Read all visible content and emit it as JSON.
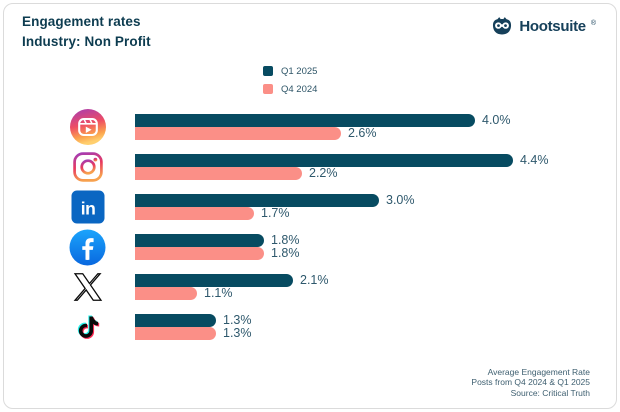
{
  "header": {
    "title": "Engagement rates",
    "subtitle": "Industry: Non Profit",
    "brand": "Hootsuite",
    "brand_mark": "®"
  },
  "chart_data": {
    "type": "bar",
    "orientation": "horizontal",
    "title": "Engagement rates — Industry: Non Profit",
    "value_suffix": "%",
    "xlim": [
      0,
      4.4
    ],
    "grid": false,
    "legend_position": "top-center",
    "categories": [
      {
        "label": "Instagram Reels",
        "icon": "instagram-reels-icon"
      },
      {
        "label": "Instagram",
        "icon": "instagram-icon"
      },
      {
        "label": "LinkedIn",
        "icon": "linkedin-icon"
      },
      {
        "label": "Facebook",
        "icon": "facebook-icon"
      },
      {
        "label": "X (Twitter)",
        "icon": "x-icon"
      },
      {
        "label": "TikTok",
        "icon": "tiktok-icon"
      }
    ],
    "series": [
      {
        "name": "Q1 2025",
        "color": "#074b61",
        "values": [
          4.0,
          4.4,
          3.0,
          1.8,
          2.1,
          1.3
        ]
      },
      {
        "name": "Q4 2024",
        "color": "#fb8f87",
        "values": [
          2.6,
          2.2,
          1.7,
          1.8,
          1.1,
          1.3
        ]
      }
    ]
  },
  "footer": {
    "line1": "Average Engagement Rate",
    "line2": "Posts from Q4 2024 & Q1 2025",
    "line3": "Source: Critical Truth"
  },
  "colors": {
    "q1_bar": "#074b61",
    "q4_bar": "#fb8f87",
    "title_text": "#0d3c50",
    "label_text": "#2e586c",
    "border": "#dbdbdb"
  }
}
